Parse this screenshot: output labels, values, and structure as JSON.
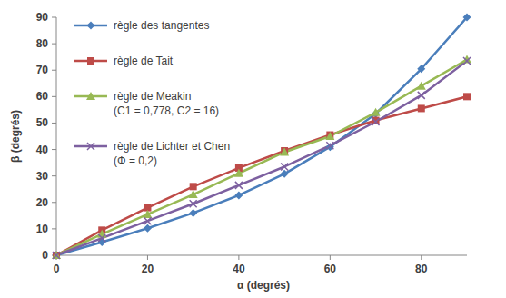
{
  "chart_data": {
    "type": "line",
    "x_label": "α (degrés)",
    "y_label": "β (degrés)",
    "x": [
      0,
      10,
      20,
      30,
      40,
      50,
      60,
      70,
      80,
      90
    ],
    "xlim": [
      0,
      90
    ],
    "xticks": [
      0,
      20,
      40,
      60,
      80
    ],
    "ylim": [
      0,
      90
    ],
    "yticks": [
      0,
      10,
      20,
      30,
      40,
      50,
      60,
      70,
      80,
      90
    ],
    "grid": false,
    "legend": "upper left",
    "series": [
      {
        "name": "règle des tangentes",
        "color": "#4a7ebb",
        "marker": "diamond",
        "values": [
          0,
          5,
          10.2,
          16,
          22.7,
          30.8,
          41,
          53.5,
          70.5,
          90
        ]
      },
      {
        "name": "règle de Tait",
        "color": "#be4b48",
        "marker": "square",
        "values": [
          0,
          9.5,
          18,
          26,
          33,
          39.5,
          45.5,
          51,
          55.5,
          60
        ]
      },
      {
        "name": "règle de Meakin\n(C1 = 0,778, C2 = 16)",
        "color": "#98b954",
        "marker": "triangle",
        "values": [
          0,
          8,
          15.5,
          23,
          31,
          39,
          45,
          54,
          64,
          74
        ]
      },
      {
        "name": "règle de Lichter et Chen\n(Φ = 0,2)",
        "color": "#7d60a0",
        "marker": "x",
        "values": [
          0,
          6.5,
          13,
          19.5,
          26.5,
          33.5,
          41.5,
          50.5,
          60.5,
          73.5
        ]
      }
    ]
  }
}
